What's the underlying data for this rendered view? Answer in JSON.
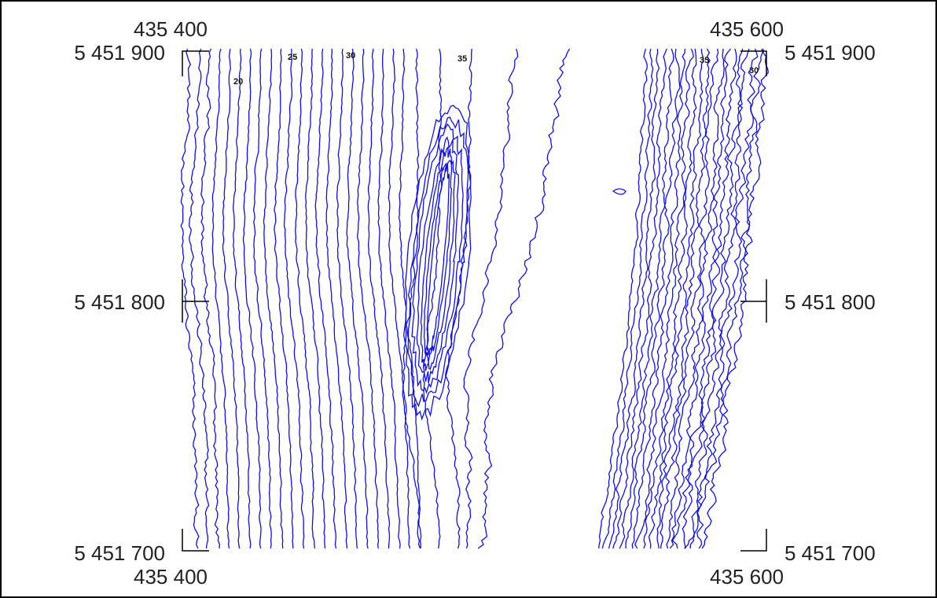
{
  "grid_labels": {
    "top": [
      "435 400",
      "435 600"
    ],
    "bottom": [
      "435 400",
      "435 600"
    ],
    "left": [
      "5 451 900",
      "5 451 800",
      "5 451 700"
    ],
    "right": [
      "5 451 900",
      "5 451 800",
      "5 451 700"
    ]
  },
  "contour_labels": [
    "20",
    "25",
    "30",
    "35",
    "35",
    "30"
  ]
}
